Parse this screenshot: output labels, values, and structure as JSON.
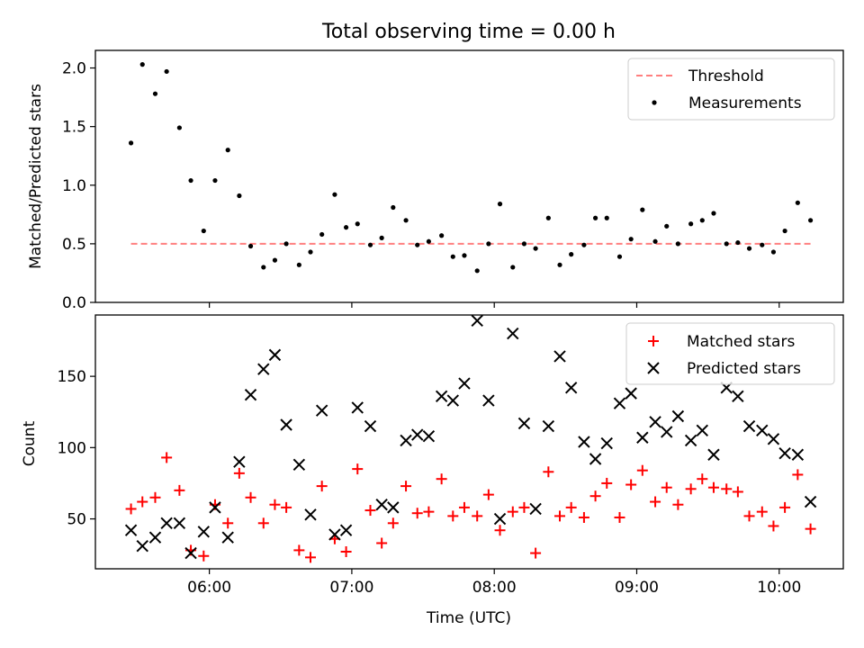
{
  "title": "Total observing time = 0.00 h",
  "colors": {
    "threshold": "#ff7f7f",
    "measurement": "#000000",
    "matched": "#ff0000",
    "predicted": "#000000"
  },
  "chart_data": [
    {
      "type": "scatter",
      "ylabel": "Matched/Predicted stars",
      "xlim": [
        5.2,
        10.45
      ],
      "ylim": [
        0,
        2.15
      ],
      "yticks": [
        0.0,
        0.5,
        1.0,
        1.5,
        2.0
      ],
      "ytick_labels": [
        "0.0",
        "0.5",
        "1.0",
        "1.5",
        "2.0"
      ],
      "xticks": [
        6,
        7,
        8,
        9,
        10
      ],
      "legend": {
        "position": "upper right",
        "entries": [
          "Threshold",
          "Measurements"
        ]
      },
      "threshold": {
        "name": "Threshold",
        "style": "dashed",
        "x": [
          5.45,
          10.22
        ],
        "y": 0.5
      },
      "series": [
        {
          "name": "Measurements",
          "marker": "dot",
          "x": [
            5.45,
            5.53,
            5.62,
            5.7,
            5.79,
            5.87,
            5.96,
            6.04,
            6.13,
            6.21,
            6.29,
            6.38,
            6.46,
            6.54,
            6.63,
            6.71,
            6.79,
            6.88,
            6.96,
            7.04,
            7.13,
            7.21,
            7.29,
            7.38,
            7.46,
            7.54,
            7.63,
            7.71,
            7.79,
            7.88,
            7.96,
            8.04,
            8.13,
            8.21,
            8.29,
            8.38,
            8.46,
            8.54,
            8.63,
            8.71,
            8.79,
            8.88,
            8.96,
            9.04,
            9.13,
            9.21,
            9.29,
            9.38,
            9.46,
            9.54,
            9.63,
            9.71,
            9.79,
            9.88,
            9.96,
            10.04,
            10.13,
            10.22
          ],
          "y": [
            1.36,
            2.03,
            1.78,
            1.97,
            1.49,
            1.04,
            0.61,
            1.04,
            1.3,
            0.91,
            0.48,
            0.3,
            0.36,
            0.5,
            0.32,
            0.43,
            0.58,
            0.92,
            0.64,
            0.67,
            0.49,
            0.55,
            0.81,
            0.7,
            0.49,
            0.52,
            0.57,
            0.39,
            0.4,
            0.27,
            0.5,
            0.84,
            0.3,
            0.5,
            0.46,
            0.72,
            0.32,
            0.41,
            0.49,
            0.72,
            0.72,
            0.39,
            0.54,
            0.79,
            0.52,
            0.65,
            0.5,
            0.67,
            0.7,
            0.76,
            0.5,
            0.51,
            0.46,
            0.49,
            0.43,
            0.61,
            0.85,
            0.7
          ]
        }
      ]
    },
    {
      "type": "scatter",
      "xlabel": "Time (UTC)",
      "ylabel": "Count",
      "xlim": [
        5.2,
        10.45
      ],
      "ylim": [
        15,
        193
      ],
      "yticks": [
        50,
        100,
        150
      ],
      "ytick_labels": [
        "50",
        "100",
        "150"
      ],
      "xticks": [
        6,
        7,
        8,
        9,
        10
      ],
      "xtick_labels": [
        "06:00",
        "07:00",
        "08:00",
        "09:00",
        "10:00"
      ],
      "legend": {
        "position": "upper right",
        "entries": [
          "Matched stars",
          "Predicted stars"
        ]
      },
      "series": [
        {
          "name": "Matched stars",
          "marker": "plus",
          "x": [
            5.45,
            5.53,
            5.62,
            5.7,
            5.79,
            5.87,
            5.96,
            6.04,
            6.13,
            6.21,
            6.29,
            6.38,
            6.46,
            6.54,
            6.63,
            6.71,
            6.79,
            6.88,
            6.96,
            7.04,
            7.13,
            7.21,
            7.29,
            7.38,
            7.46,
            7.54,
            7.63,
            7.71,
            7.79,
            7.88,
            7.96,
            8.04,
            8.13,
            8.21,
            8.29,
            8.38,
            8.46,
            8.54,
            8.63,
            8.71,
            8.79,
            8.88,
            8.96,
            9.04,
            9.13,
            9.21,
            9.29,
            9.38,
            9.46,
            9.54,
            9.63,
            9.71,
            9.79,
            9.88,
            9.96,
            10.04,
            10.13,
            10.22
          ],
          "y": [
            57,
            62,
            65,
            93,
            70,
            28,
            24,
            60,
            47,
            82,
            65,
            47,
            60,
            58,
            28,
            23,
            73,
            36,
            27,
            85,
            56,
            33,
            47,
            73,
            54,
            55,
            78,
            52,
            58,
            52,
            67,
            42,
            55,
            58,
            26,
            83,
            52,
            58,
            51,
            66,
            75,
            51,
            74,
            84,
            62,
            72,
            60,
            71,
            78,
            72,
            71,
            69,
            52,
            55,
            45,
            58,
            81,
            43
          ]
        },
        {
          "name": "Predicted stars",
          "marker": "x",
          "x": [
            5.45,
            5.53,
            5.62,
            5.7,
            5.79,
            5.87,
            5.96,
            6.04,
            6.13,
            6.21,
            6.29,
            6.38,
            6.46,
            6.54,
            6.63,
            6.71,
            6.79,
            6.88,
            6.96,
            7.04,
            7.13,
            7.21,
            7.29,
            7.38,
            7.46,
            7.54,
            7.63,
            7.71,
            7.79,
            7.88,
            7.96,
            8.04,
            8.13,
            8.21,
            8.29,
            8.38,
            8.46,
            8.54,
            8.63,
            8.71,
            8.79,
            8.88,
            8.96,
            9.04,
            9.13,
            9.21,
            9.29,
            9.38,
            9.46,
            9.54,
            9.63,
            9.71,
            9.79,
            9.88,
            9.96,
            10.04,
            10.13,
            10.22
          ],
          "y": [
            42,
            31,
            37,
            47,
            47,
            26,
            41,
            58,
            37,
            90,
            137,
            155,
            165,
            116,
            88,
            53,
            126,
            39,
            42,
            128,
            115,
            60,
            58,
            105,
            109,
            108,
            136,
            133,
            145,
            189,
            133,
            50,
            180,
            117,
            57,
            115,
            164,
            142,
            104,
            92,
            103,
            131,
            138,
            107,
            118,
            111,
            122,
            105,
            112,
            95,
            142,
            136,
            115,
            112,
            106,
            96,
            95,
            62
          ]
        }
      ]
    }
  ]
}
